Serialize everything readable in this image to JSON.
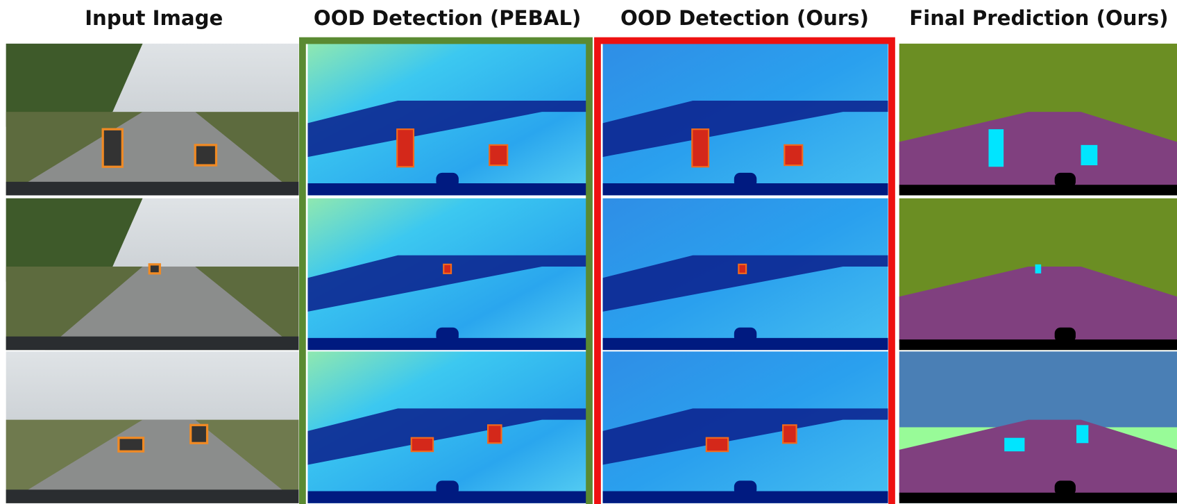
{
  "columns": [
    {
      "title": "Input Image"
    },
    {
      "title": "OOD Detection (PEBAL)"
    },
    {
      "title": "OOD Detection (Ours)"
    },
    {
      "title": "Final Prediction (Ours)"
    }
  ]
}
